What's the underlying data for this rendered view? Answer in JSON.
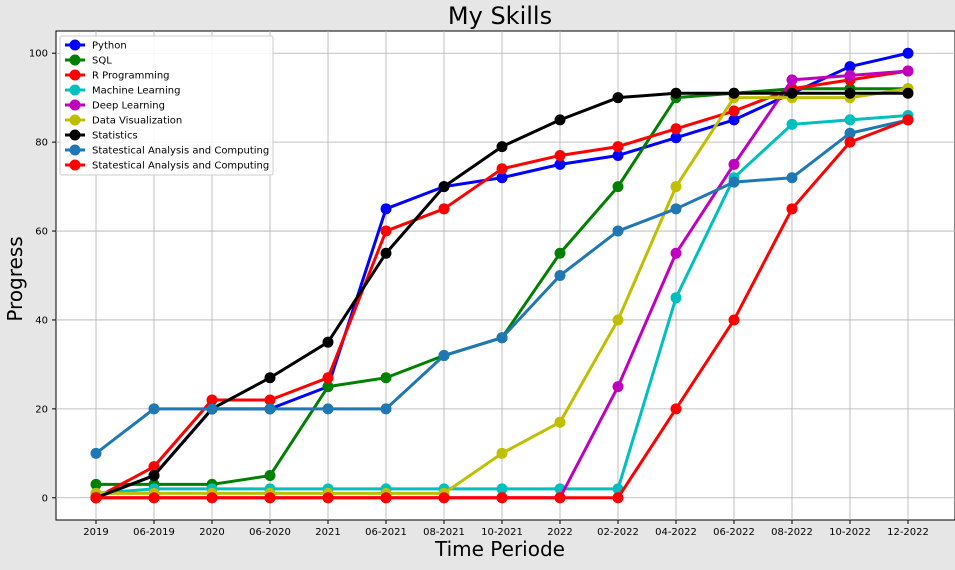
{
  "chart_data": {
    "type": "line",
    "title": "My Skills",
    "xlabel": "Time Periode",
    "ylabel": "Progress",
    "categories": [
      "2019",
      "06-2019",
      "2020",
      "06-2020",
      "2021",
      "06-2021",
      "08-2021",
      "10-2021",
      "2022",
      "02-2022",
      "04-2022",
      "06-2022",
      "08-2022",
      "10-2022",
      "12-2022"
    ],
    "ylim": [
      -5,
      105
    ],
    "yticks": [
      0,
      20,
      40,
      60,
      80,
      100
    ],
    "grid": true,
    "legend_position": "top-left",
    "series": [
      {
        "name": "Python",
        "color": "#0000ff",
        "values": [
          0,
          5,
          20,
          20,
          25,
          65,
          70,
          72,
          75,
          77,
          81,
          85,
          91,
          97,
          100
        ]
      },
      {
        "name": "SQL",
        "color": "#008000",
        "values": [
          3,
          3,
          3,
          5,
          25,
          27,
          32,
          36,
          55,
          70,
          90,
          91,
          92,
          92,
          92
        ]
      },
      {
        "name": "R Programming",
        "color": "#ff0000",
        "values": [
          0,
          7,
          22,
          22,
          27,
          60,
          65,
          74,
          77,
          79,
          83,
          87,
          92,
          94,
          96
        ]
      },
      {
        "name": "Machine Learning",
        "color": "#00bfbf",
        "values": [
          1,
          2,
          2,
          2,
          2,
          2,
          2,
          2,
          2,
          2,
          45,
          72,
          84,
          85,
          86
        ]
      },
      {
        "name": "Deep Learning",
        "color": "#bf00bf",
        "values": [
          0,
          0,
          0,
          0,
          0,
          0,
          0,
          0,
          0,
          25,
          55,
          75,
          94,
          95,
          96
        ]
      },
      {
        "name": "Data Visualization",
        "color": "#bfbf00",
        "values": [
          1,
          1,
          1,
          1,
          1,
          1,
          1,
          10,
          17,
          40,
          70,
          90,
          90,
          90,
          92
        ]
      },
      {
        "name": "Statistics",
        "color": "#000000",
        "values": [
          0,
          5,
          20,
          27,
          35,
          55,
          70,
          79,
          85,
          90,
          91,
          91,
          91,
          91,
          91
        ]
      },
      {
        "name": "Statestical Analysis and Computing",
        "color": "#1f77b4",
        "values": [
          10,
          20,
          20,
          20,
          20,
          20,
          32,
          36,
          50,
          60,
          65,
          71,
          72,
          82,
          85
        ]
      },
      {
        "name": "Statestical Analysis and Computing",
        "color": "#ff0000",
        "values": [
          0,
          0,
          0,
          0,
          0,
          0,
          0,
          0,
          0,
          0,
          20,
          40,
          65,
          80,
          85
        ]
      }
    ]
  }
}
